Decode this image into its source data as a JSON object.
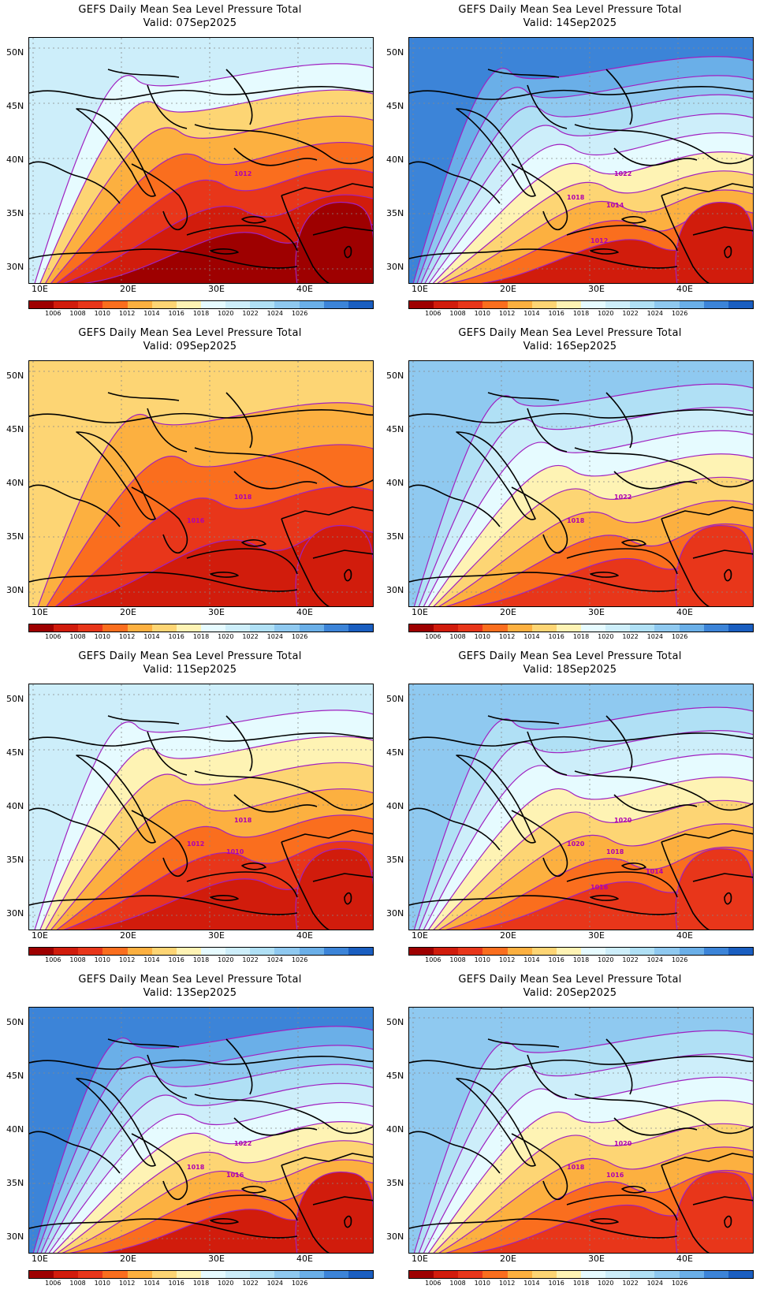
{
  "palette": {
    "bands": [
      "#9e0000",
      "#d11c0c",
      "#e8361a",
      "#fa6e1e",
      "#fcb040",
      "#fdd574",
      "#fef3b4",
      "#e6fbff",
      "#cdeefa",
      "#b0e0f5",
      "#8fc9f0",
      "#6aafe8",
      "#3c84d8",
      "#1a5ec0"
    ],
    "contour": "#a020c0"
  },
  "colorbar_ticks": [
    "1006",
    "1008",
    "1010",
    "1012",
    "1014",
    "1016",
    "1018",
    "1020",
    "1022",
    "1024",
    "1026"
  ],
  "lat_labels": [
    "50N",
    "45N",
    "40N",
    "35N",
    "30N"
  ],
  "lon_labels": [
    "10E",
    "20E",
    "30E",
    "40E"
  ],
  "panels": [
    {
      "title": "GEFS Daily Mean Sea Level Pressure Total",
      "valid": "Valid: 07Sep2025",
      "labels": [
        "1012"
      ],
      "regime": "mid-low"
    },
    {
      "title": "GEFS Daily Mean Sea Level Pressure Total",
      "valid": "Valid: 14Sep2025",
      "labels": [
        "1022",
        "1018",
        "1014",
        "1012"
      ],
      "regime": "high"
    },
    {
      "title": "GEFS Daily Mean Sea Level Pressure Total",
      "valid": "Valid: 09Sep2025",
      "labels": [
        "1018",
        "1016"
      ],
      "regime": "low"
    },
    {
      "title": "GEFS Daily Mean Sea Level Pressure Total",
      "valid": "Valid: 16Sep2025",
      "labels": [
        "1022",
        "1018"
      ],
      "regime": "mid-high"
    },
    {
      "title": "GEFS Daily Mean Sea Level Pressure Total",
      "valid": "Valid: 11Sep2025",
      "labels": [
        "1018",
        "1012",
        "1010"
      ],
      "regime": "mid"
    },
    {
      "title": "GEFS Daily Mean Sea Level Pressure Total",
      "valid": "Valid: 18Sep2025",
      "labels": [
        "1020",
        "1020",
        "1018",
        "1016",
        "1014"
      ],
      "regime": "mid-high"
    },
    {
      "title": "GEFS Daily Mean Sea Level Pressure Total",
      "valid": "Valid: 13Sep2025",
      "labels": [
        "1022",
        "1018",
        "1016"
      ],
      "regime": "high"
    },
    {
      "title": "GEFS Daily Mean Sea Level Pressure Total",
      "valid": "Valid: 20Sep2025",
      "labels": [
        "1020",
        "1018",
        "1016"
      ],
      "regime": "mid-high"
    }
  ]
}
